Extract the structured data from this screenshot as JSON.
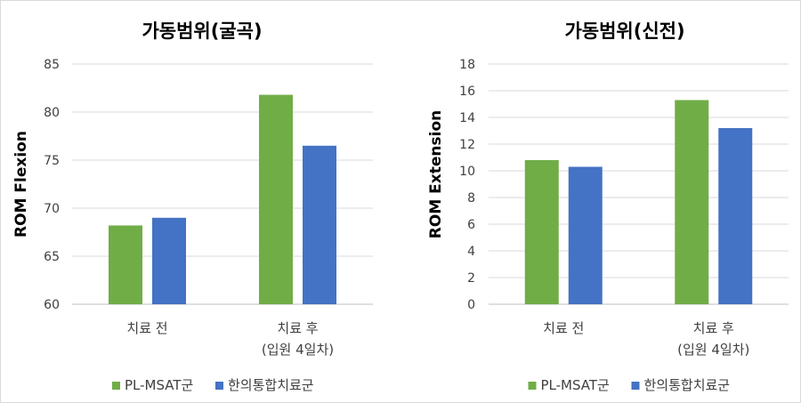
{
  "chart_data": [
    {
      "type": "bar",
      "title": "가동범위(굴곡)",
      "ylabel": "ROM Flexion",
      "xlabel": "",
      "ylim": [
        60,
        85
      ],
      "yticks": [
        60,
        65,
        70,
        75,
        80,
        85
      ],
      "categories": [
        [
          "치료 전"
        ],
        [
          "치료 후",
          "(입원 4일차)"
        ]
      ],
      "series": [
        {
          "name": "PL-MSAT군",
          "color": "#70ad47",
          "values": [
            68.2,
            81.8
          ]
        },
        {
          "name": "한의통합치료군",
          "color": "#4472c4",
          "values": [
            69.0,
            76.5
          ]
        }
      ],
      "grid": true,
      "legend": "bottom"
    },
    {
      "type": "bar",
      "title": "가동범위(신전)",
      "ylabel": "ROM Extension",
      "xlabel": "",
      "ylim": [
        0,
        18
      ],
      "yticks": [
        0,
        2,
        4,
        6,
        8,
        10,
        12,
        14,
        16,
        18
      ],
      "categories": [
        [
          "치료 전"
        ],
        [
          "치료 후",
          "(입원 4일차)"
        ]
      ],
      "series": [
        {
          "name": "PL-MSAT군",
          "color": "#70ad47",
          "values": [
            10.8,
            15.3
          ]
        },
        {
          "name": "한의통합치료군",
          "color": "#4472c4",
          "values": [
            10.3,
            13.2
          ]
        }
      ],
      "grid": true,
      "legend": "bottom"
    }
  ]
}
